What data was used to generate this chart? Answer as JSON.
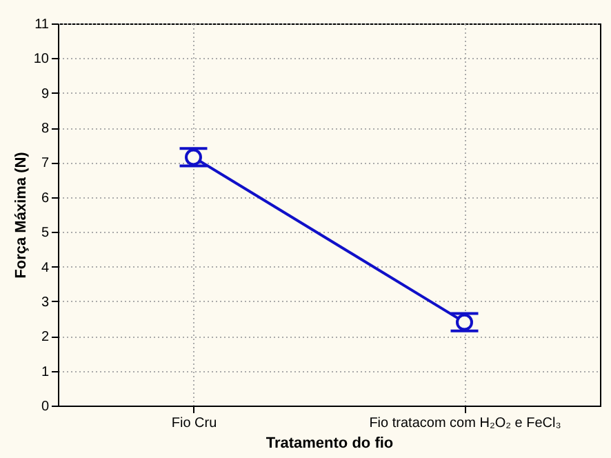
{
  "chart_data": {
    "type": "line",
    "xlabel": "Tratamento do fio",
    "ylabel": "Força Máxima (N)",
    "categories": [
      "Fio Cru",
      "Fio tratacom com H₂O₂ e FeCl₃"
    ],
    "series": [
      {
        "color": "#1010c8",
        "values": [
          7.15,
          2.4
        ],
        "errors": [
          0.25,
          0.25
        ]
      }
    ],
    "ylim": [
      0,
      11
    ],
    "yticks": [
      0,
      1,
      2,
      3,
      4,
      5,
      6,
      7,
      8,
      9,
      10,
      11
    ],
    "grid": true,
    "marker": "circle",
    "line_style": "solid"
  }
}
